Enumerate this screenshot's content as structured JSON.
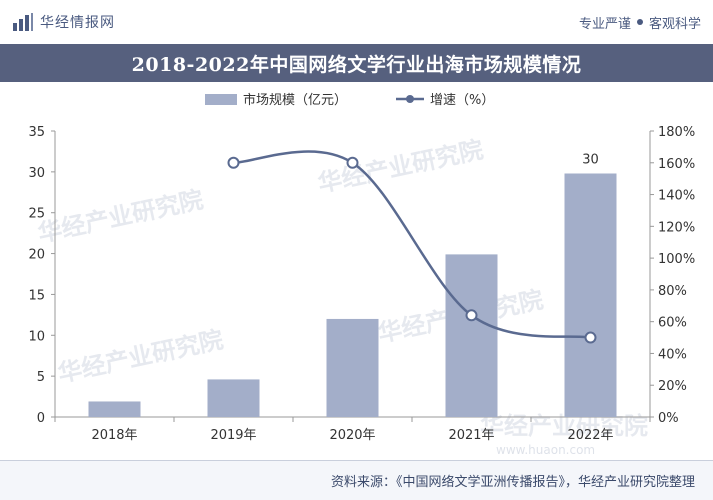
{
  "header": {
    "brand": "华经情报网",
    "slogan_left": "专业严谨",
    "slogan_right": "客观科学"
  },
  "title": "2018-2022年中国网络文学行业出海市场规模情况",
  "footer": {
    "source": "资料来源：《中国网络文学亚洲传播报告》，华经产业研究院整理"
  },
  "watermark": {
    "text": "华经产业研究院",
    "url": "www.huaon.com"
  },
  "colors": {
    "bar": "#a3aec9",
    "line": "#5a6a90",
    "title_bg": "#56607e"
  },
  "chart_data": {
    "type": "bar",
    "categories": [
      "2018年",
      "2019年",
      "2020年",
      "2021年",
      "2022年"
    ],
    "series": [
      {
        "name": "市场规模（亿元）",
        "type": "bar",
        "axis": "left",
        "values": [
          1.9,
          4.6,
          12.0,
          19.9,
          29.8
        ]
      },
      {
        "name": "增速（%）",
        "type": "line",
        "axis": "right",
        "values": [
          null,
          160,
          160,
          64,
          50
        ]
      }
    ],
    "data_labels": [
      null,
      null,
      null,
      null,
      "30"
    ],
    "y_left": {
      "ticks": [
        "0",
        "5",
        "10",
        "15",
        "20",
        "25",
        "30",
        "35"
      ],
      "min": 0,
      "max": 35
    },
    "y_right": {
      "ticks": [
        "0%",
        "20%",
        "40%",
        "60%",
        "80%",
        "100%",
        "120%",
        "140%",
        "160%",
        "180%"
      ],
      "min": 0,
      "max": 180
    },
    "legend": {
      "position": "top",
      "bar_label": "市场规模（亿元）",
      "line_label": "增速（%）"
    },
    "grid": false
  }
}
